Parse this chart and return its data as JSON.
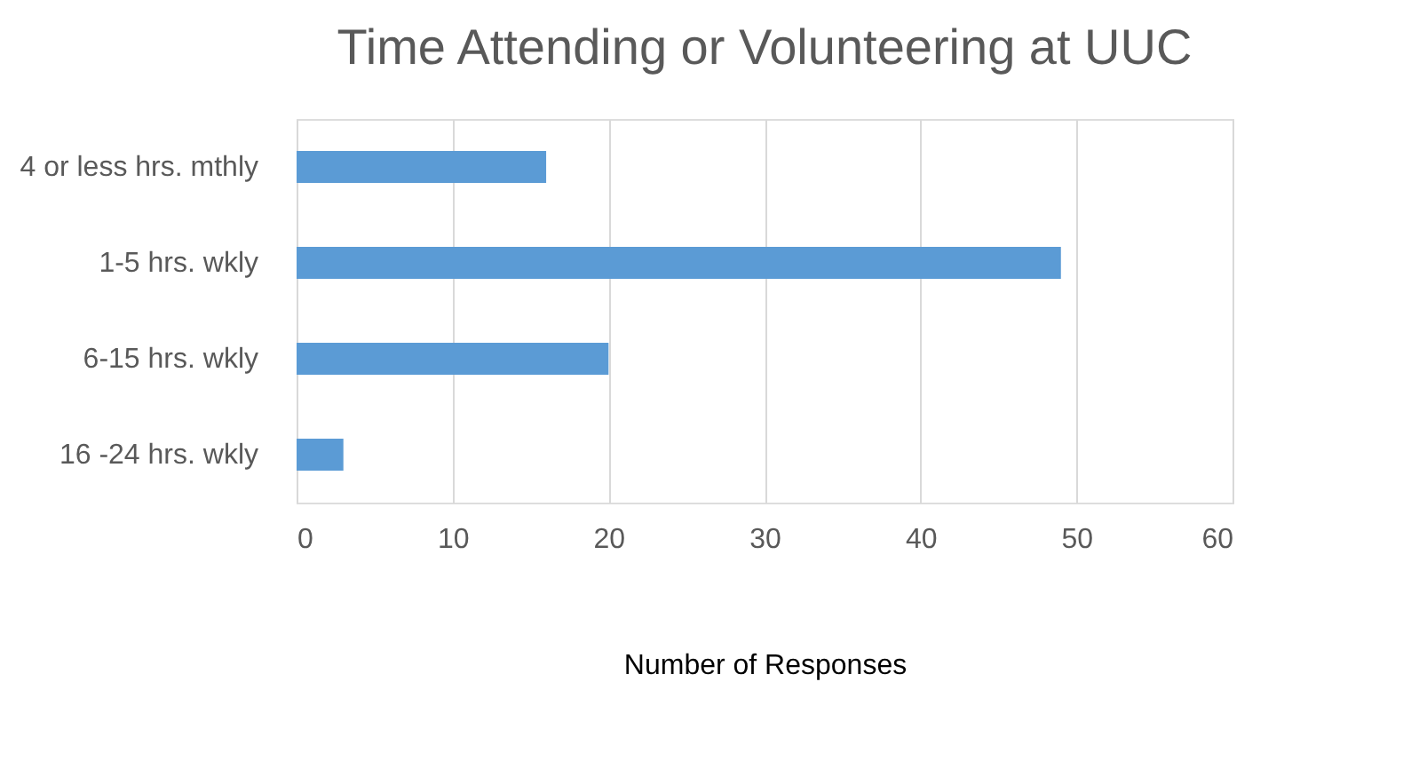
{
  "chart_data": {
    "type": "bar",
    "orientation": "horizontal",
    "title": "Time Attending or Volunteering at UUC",
    "xlabel": "Number of Responses",
    "categories": [
      "4 or less hrs. mthly",
      "1-5 hrs. wkly",
      "6-15 hrs. wkly",
      "16 -24 hrs. wkly"
    ],
    "values": [
      16,
      49,
      20,
      3
    ],
    "color": "#5b9bd5",
    "xlim": [
      0,
      60
    ],
    "xticks": [
      0,
      10,
      20,
      30,
      40,
      50,
      60
    ],
    "grid": "x"
  }
}
